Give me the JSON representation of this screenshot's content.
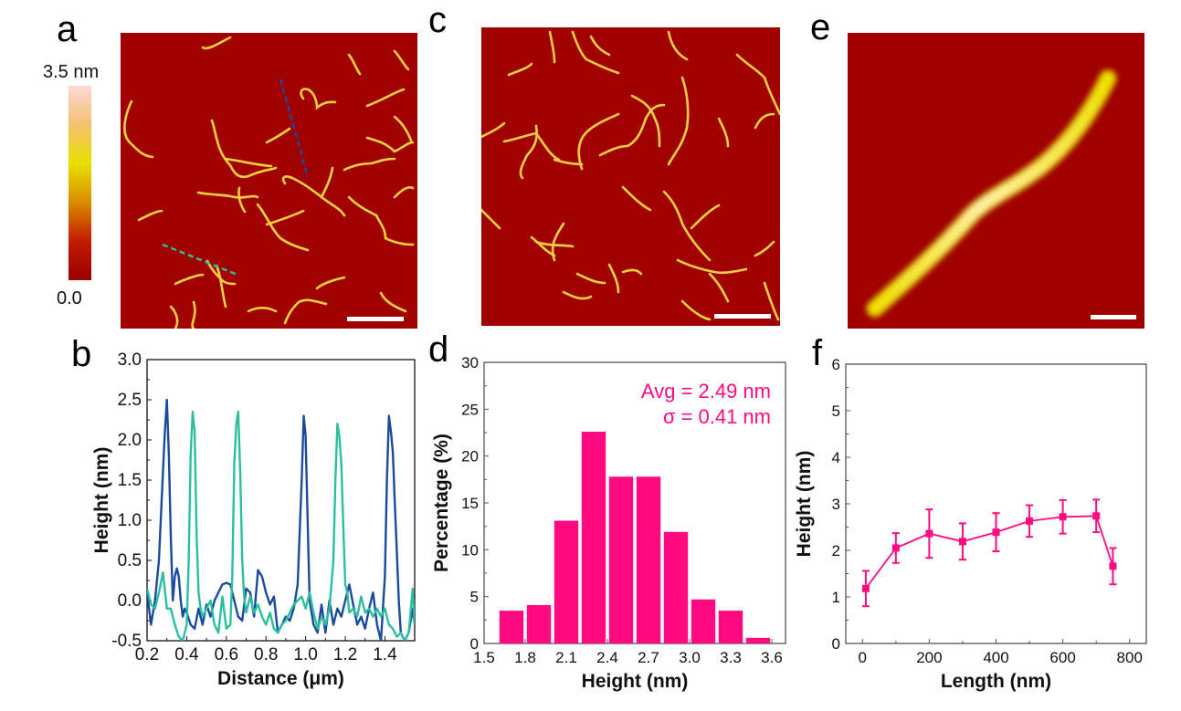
{
  "panels": {
    "a": {
      "letter": "a",
      "colorbar": {
        "max_label": "3.5 nm",
        "min_label": "0.0",
        "stops": [
          "#9a0000",
          "#c21a00",
          "#d98b00",
          "#e8e000",
          "#f5c070",
          "#ffd8d8"
        ]
      }
    },
    "b": {
      "letter": "b"
    },
    "c": {
      "letter": "c"
    },
    "d": {
      "letter": "d"
    },
    "e": {
      "letter": "e"
    },
    "f": {
      "letter": "f"
    }
  },
  "colors": {
    "afm_background": "#a00000",
    "fibril": "#f5d040",
    "line_dark_blue": "#1a4aa0",
    "line_teal": "#2bbf9e",
    "magenta": "#ff0a80",
    "scale_bar": "#ffffff"
  },
  "chart_data": [
    {
      "id": "b",
      "type": "line",
      "title": "",
      "xlabel": "Distance (μm)",
      "ylabel": "Height (nm)",
      "xlim": [
        0.2,
        1.55
      ],
      "ylim": [
        -0.5,
        3.0
      ],
      "xticks": [
        0.2,
        0.4,
        0.6,
        0.8,
        1.0,
        1.2,
        1.4
      ],
      "xtick_labels": [
        "0.2",
        "0.4",
        "0.6",
        "0.8",
        "1.0",
        "1.2",
        "1.4"
      ],
      "yticks": [
        -0.5,
        0.0,
        0.5,
        1.0,
        1.5,
        2.0,
        2.5,
        3.0
      ],
      "ytick_labels": [
        "-0.5",
        "0.0",
        "0.5",
        "1.0",
        "1.5",
        "2.0",
        "2.5",
        "3.0"
      ],
      "grid": false,
      "series": [
        {
          "name": "dark-blue profile",
          "color": "#1a4aa0",
          "x": [
            0.2,
            0.22,
            0.24,
            0.26,
            0.28,
            0.29,
            0.3,
            0.31,
            0.32,
            0.33,
            0.34,
            0.35,
            0.36,
            0.37,
            0.38,
            0.39,
            0.4,
            0.42,
            0.44,
            0.46,
            0.48,
            0.5,
            0.52,
            0.54,
            0.56,
            0.58,
            0.6,
            0.62,
            0.64,
            0.66,
            0.68,
            0.7,
            0.72,
            0.74,
            0.76,
            0.78,
            0.8,
            0.82,
            0.84,
            0.86,
            0.88,
            0.9,
            0.92,
            0.94,
            0.96,
            0.98,
            0.99,
            1.0,
            1.01,
            1.02,
            1.04,
            1.06,
            1.08,
            1.1,
            1.12,
            1.14,
            1.16,
            1.18,
            1.2,
            1.22,
            1.24,
            1.26,
            1.28,
            1.3,
            1.32,
            1.34,
            1.36,
            1.38,
            1.4,
            1.41,
            1.42,
            1.43,
            1.44,
            1.45,
            1.46,
            1.47,
            1.48,
            1.5,
            1.52,
            1.54,
            1.55
          ],
          "y": [
            0.1,
            -0.3,
            0.0,
            0.5,
            1.6,
            2.1,
            2.5,
            1.8,
            0.8,
            0.0,
            0.3,
            0.4,
            0.3,
            0.0,
            -0.2,
            -0.1,
            -0.15,
            -0.3,
            -0.35,
            -0.1,
            -0.3,
            -0.05,
            -0.2,
            0.0,
            0.1,
            0.2,
            0.22,
            0.2,
            0.0,
            -0.2,
            -0.25,
            0.15,
            0.1,
            -0.2,
            0.38,
            0.3,
            0.1,
            -0.05,
            0.05,
            -0.4,
            -0.3,
            -0.2,
            -0.25,
            -0.1,
            0.2,
            1.5,
            2.3,
            2.05,
            1.0,
            0.0,
            -0.3,
            -0.4,
            -0.05,
            -0.4,
            0.0,
            -0.3,
            -0.1,
            -0.2,
            0.0,
            0.2,
            -0.05,
            -0.3,
            -0.2,
            -0.35,
            -0.1,
            0.1,
            -0.3,
            -0.5,
            0.3,
            1.5,
            2.3,
            2.1,
            1.85,
            1.2,
            0.6,
            0.0,
            -0.4,
            -0.5,
            -0.4,
            -0.1,
            -0.3
          ]
        },
        {
          "name": "teal profile",
          "color": "#2bbf9e",
          "x": [
            0.2,
            0.22,
            0.24,
            0.26,
            0.28,
            0.3,
            0.32,
            0.34,
            0.36,
            0.38,
            0.4,
            0.41,
            0.42,
            0.43,
            0.44,
            0.45,
            0.46,
            0.47,
            0.48,
            0.5,
            0.52,
            0.54,
            0.56,
            0.58,
            0.6,
            0.62,
            0.63,
            0.64,
            0.65,
            0.66,
            0.67,
            0.68,
            0.69,
            0.7,
            0.72,
            0.74,
            0.76,
            0.78,
            0.8,
            0.82,
            0.84,
            0.86,
            0.88,
            0.9,
            0.92,
            0.94,
            0.96,
            0.98,
            1.0,
            1.02,
            1.04,
            1.06,
            1.08,
            1.1,
            1.12,
            1.14,
            1.15,
            1.16,
            1.17,
            1.18,
            1.19,
            1.2,
            1.21,
            1.22,
            1.24,
            1.26,
            1.28,
            1.3,
            1.32,
            1.34,
            1.36,
            1.38,
            1.4,
            1.42,
            1.44,
            1.46,
            1.48,
            1.5,
            1.52,
            1.54,
            1.55
          ],
          "y": [
            0.15,
            -0.05,
            -0.1,
            0.1,
            0.35,
            -0.1,
            -0.1,
            -0.3,
            -0.45,
            -0.5,
            -0.3,
            0.5,
            1.8,
            2.35,
            2.1,
            0.8,
            0.1,
            -0.1,
            -0.2,
            -0.1,
            0.0,
            -0.3,
            -0.4,
            0.05,
            -0.35,
            -0.3,
            0.3,
            1.7,
            2.2,
            2.35,
            1.6,
            0.5,
            0.05,
            -0.15,
            0.05,
            -0.15,
            -0.05,
            -0.2,
            -0.3,
            -0.15,
            -0.35,
            -0.4,
            -0.3,
            -0.25,
            -0.15,
            -0.05,
            0.0,
            0.05,
            -0.1,
            0.1,
            -0.15,
            -0.35,
            -0.2,
            -0.3,
            -0.1,
            0.5,
            1.5,
            2.2,
            2.05,
            1.7,
            0.9,
            0.2,
            0.1,
            -0.15,
            -0.1,
            -0.2,
            0.05,
            -0.15,
            -0.1,
            -0.2,
            -0.1,
            -0.2,
            -0.1,
            -0.3,
            -0.35,
            -0.45,
            -0.4,
            -0.5,
            -0.4,
            0.15,
            -0.3
          ]
        }
      ]
    },
    {
      "id": "d",
      "type": "bar",
      "title": "",
      "xlabel": "Height (nm)",
      "ylabel": "Percentage (%)",
      "xlim": [
        1.5,
        3.7
      ],
      "ylim": [
        0,
        30
      ],
      "xticks": [
        1.5,
        1.8,
        2.1,
        2.4,
        2.7,
        3.0,
        3.3,
        3.6
      ],
      "xtick_labels": [
        "1.5",
        "1.8",
        "2.1",
        "2.4",
        "2.7",
        "3.0",
        "3.3",
        "3.6"
      ],
      "yticks": [
        0,
        5,
        10,
        15,
        20,
        25,
        30
      ],
      "ytick_labels": [
        "0",
        "5",
        "10",
        "15",
        "20",
        "25",
        "30"
      ],
      "grid": false,
      "bin_width": 0.2,
      "categories": [
        1.7,
        1.9,
        2.1,
        2.3,
        2.5,
        2.7,
        2.9,
        3.1,
        3.3,
        3.5
      ],
      "values": [
        3.5,
        4.1,
        13.1,
        22.6,
        17.8,
        17.8,
        11.9,
        4.7,
        3.5,
        0.6
      ],
      "color": "#ff0a80",
      "annotations": [
        "Avg = 2.49 nm",
        "σ = 0.41 nm"
      ],
      "annotation_placement": "top-right"
    },
    {
      "id": "f",
      "type": "line",
      "title": "",
      "xlabel": "Length (nm)",
      "ylabel": "Height (nm)",
      "xlim": [
        -50,
        850
      ],
      "ylim": [
        0,
        6
      ],
      "xticks": [
        0,
        200,
        400,
        600,
        800
      ],
      "xtick_labels": [
        "0",
        "200",
        "400",
        "600",
        "800"
      ],
      "yticks": [
        0,
        1,
        2,
        3,
        4,
        5,
        6
      ],
      "ytick_labels": [
        "0",
        "1",
        "2",
        "3",
        "4",
        "5",
        "6"
      ],
      "grid": false,
      "color": "#ff0a80",
      "x": [
        10,
        100,
        200,
        300,
        400,
        500,
        600,
        700,
        750
      ],
      "y": [
        1.18,
        2.05,
        2.36,
        2.19,
        2.39,
        2.63,
        2.72,
        2.74,
        1.66
      ],
      "error": [
        0.38,
        0.32,
        0.52,
        0.39,
        0.41,
        0.34,
        0.36,
        0.35,
        0.39
      ],
      "marker": "square"
    }
  ]
}
